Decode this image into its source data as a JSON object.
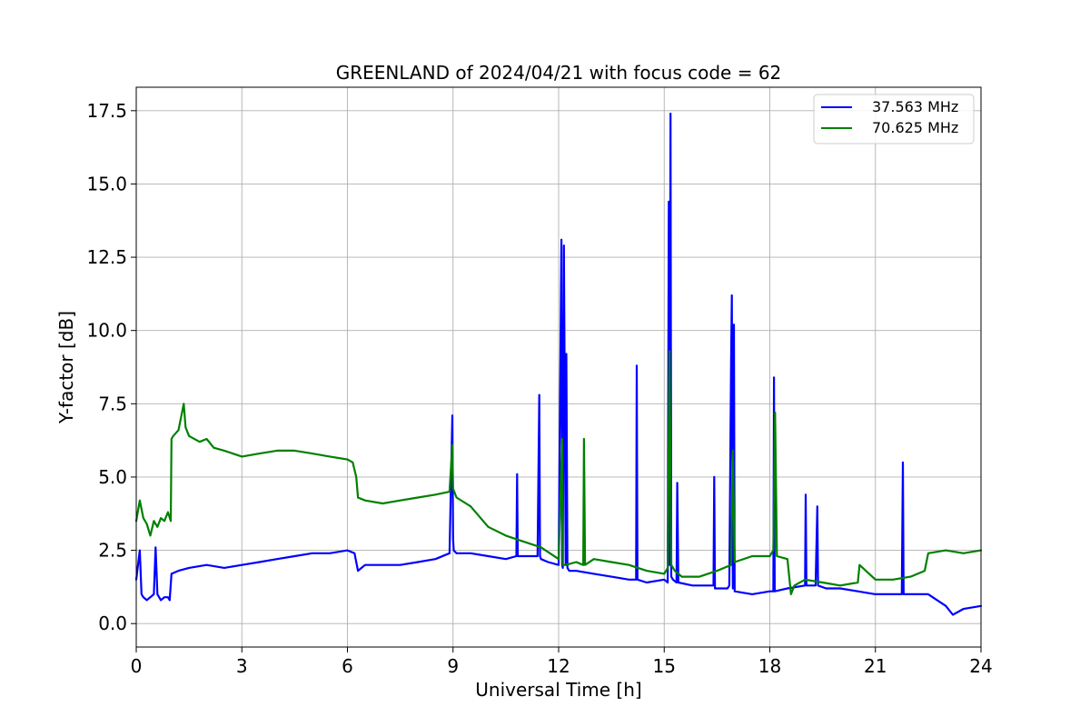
{
  "chart_data": {
    "type": "line",
    "title": "GREENLAND of 2024/04/21 with focus code = 62",
    "xlabel": "Universal Time [h]",
    "ylabel": "Y-factor [dB]",
    "xlim": [
      0,
      24
    ],
    "ylim": [
      -0.8,
      18.3
    ],
    "xticks": [
      0,
      3,
      6,
      9,
      12,
      15,
      18,
      21,
      24
    ],
    "xtick_labels": [
      "0",
      "3",
      "6",
      "9",
      "12",
      "15",
      "18",
      "21",
      "24"
    ],
    "yticks": [
      0.0,
      2.5,
      5.0,
      7.5,
      10.0,
      12.5,
      15.0,
      17.5
    ],
    "ytick_labels": [
      "0.0",
      "2.5",
      "5.0",
      "7.5",
      "10.0",
      "12.5",
      "15.0",
      "17.5"
    ],
    "grid": true,
    "legend_position": "top-right",
    "series": [
      {
        "name": "37.563 MHz",
        "color": "#0000ff",
        "x": [
          0,
          0.1,
          0.15,
          0.2,
          0.3,
          0.4,
          0.5,
          0.55,
          0.6,
          0.7,
          0.8,
          0.9,
          0.95,
          1.0,
          1.2,
          1.5,
          2.0,
          2.5,
          3.0,
          3.5,
          4.0,
          4.5,
          5.0,
          5.5,
          6.0,
          6.2,
          6.3,
          6.5,
          7.0,
          7.5,
          8.0,
          8.5,
          8.9,
          8.98,
          9.0,
          9.02,
          9.1,
          9.5,
          10.0,
          10.5,
          10.8,
          10.82,
          10.84,
          11.0,
          11.4,
          11.45,
          11.47,
          11.5,
          11.7,
          12.0,
          12.08,
          12.1,
          12.12,
          12.15,
          12.2,
          12.22,
          12.25,
          12.3,
          12.5,
          13.0,
          13.5,
          14.0,
          14.2,
          14.22,
          14.24,
          14.5,
          15.0,
          15.1,
          15.13,
          15.15,
          15.18,
          15.2,
          15.25,
          15.35,
          15.37,
          15.4,
          15.8,
          16.0,
          16.4,
          16.42,
          16.44,
          16.8,
          16.85,
          16.9,
          16.92,
          16.95,
          16.98,
          17.0,
          17.5,
          18.0,
          18.1,
          18.12,
          18.14,
          18.5,
          19.0,
          19.02,
          19.04,
          19.3,
          19.35,
          19.37,
          19.6,
          20.0,
          20.5,
          21.0,
          21.5,
          21.75,
          21.78,
          21.8,
          22.0,
          22.5,
          23.0,
          23.2,
          23.5,
          24.0
        ],
        "y": [
          1.5,
          2.5,
          1.0,
          0.9,
          0.8,
          0.9,
          1.0,
          2.6,
          1.0,
          0.8,
          0.9,
          0.9,
          0.8,
          1.7,
          1.8,
          1.9,
          2.0,
          1.9,
          2.0,
          2.1,
          2.2,
          2.3,
          2.4,
          2.4,
          2.5,
          2.4,
          1.8,
          2.0,
          2.0,
          2.0,
          2.1,
          2.2,
          2.4,
          7.1,
          2.9,
          2.5,
          2.4,
          2.4,
          2.3,
          2.2,
          2.3,
          5.1,
          2.3,
          2.3,
          2.3,
          7.8,
          2.3,
          2.2,
          2.1,
          2.0,
          13.1,
          2.0,
          1.9,
          12.9,
          2.0,
          9.2,
          1.9,
          1.8,
          1.8,
          1.7,
          1.6,
          1.5,
          1.5,
          8.8,
          1.5,
          1.4,
          1.5,
          1.4,
          14.4,
          2.0,
          17.4,
          1.6,
          1.5,
          1.4,
          4.8,
          1.4,
          1.3,
          1.3,
          1.3,
          5.0,
          1.2,
          1.2,
          1.3,
          9.0,
          11.2,
          1.2,
          10.2,
          1.1,
          1.0,
          1.1,
          1.1,
          8.4,
          1.1,
          1.2,
          1.3,
          4.4,
          1.3,
          1.3,
          4.0,
          1.3,
          1.2,
          1.2,
          1.1,
          1.0,
          1.0,
          1.0,
          5.5,
          1.0,
          1.0,
          1.0,
          0.6,
          0.3,
          0.5,
          0.6
        ]
      },
      {
        "name": "70.625 MHz",
        "color": "#008000",
        "x": [
          0,
          0.1,
          0.2,
          0.3,
          0.4,
          0.5,
          0.6,
          0.7,
          0.8,
          0.9,
          0.98,
          1.0,
          1.05,
          1.2,
          1.35,
          1.4,
          1.5,
          1.8,
          2.0,
          2.2,
          2.5,
          3.0,
          3.5,
          4.0,
          4.5,
          5.0,
          5.5,
          6.0,
          6.15,
          6.25,
          6.3,
          6.5,
          7.0,
          7.5,
          8.0,
          8.5,
          8.9,
          8.98,
          9.0,
          9.1,
          9.5,
          10.0,
          10.5,
          11.0,
          11.5,
          12.0,
          12.1,
          12.12,
          12.2,
          12.5,
          12.7,
          12.72,
          12.75,
          13.0,
          13.5,
          14.0,
          14.5,
          15.0,
          15.1,
          15.15,
          15.2,
          15.3,
          15.5,
          16.0,
          16.5,
          16.9,
          16.95,
          17.0,
          17.5,
          18.0,
          18.1,
          18.15,
          18.2,
          18.5,
          18.6,
          18.7,
          19.0,
          19.5,
          20.0,
          20.5,
          20.55,
          21.0,
          21.5,
          22.0,
          22.4,
          22.5,
          23.0,
          23.5,
          24.0
        ],
        "y": [
          3.5,
          4.2,
          3.6,
          3.4,
          3.0,
          3.5,
          3.3,
          3.6,
          3.5,
          3.8,
          3.5,
          6.3,
          6.4,
          6.6,
          7.5,
          6.7,
          6.4,
          6.2,
          6.3,
          6.0,
          5.9,
          5.7,
          5.8,
          5.9,
          5.9,
          5.8,
          5.7,
          5.6,
          5.5,
          5.0,
          4.3,
          4.2,
          4.1,
          4.2,
          4.3,
          4.4,
          4.5,
          6.1,
          4.6,
          4.3,
          4.0,
          3.3,
          3.0,
          2.8,
          2.6,
          2.2,
          6.3,
          2.0,
          2.0,
          2.1,
          2.0,
          6.3,
          2.0,
          2.2,
          2.1,
          2.0,
          1.8,
          1.7,
          1.9,
          9.3,
          2.0,
          1.8,
          1.6,
          1.6,
          1.8,
          2.0,
          5.9,
          2.1,
          2.3,
          2.3,
          2.5,
          7.2,
          2.3,
          2.2,
          1.0,
          1.3,
          1.5,
          1.4,
          1.3,
          1.4,
          2.0,
          1.5,
          1.5,
          1.6,
          1.8,
          2.4,
          2.5,
          2.4,
          2.5
        ]
      }
    ]
  }
}
